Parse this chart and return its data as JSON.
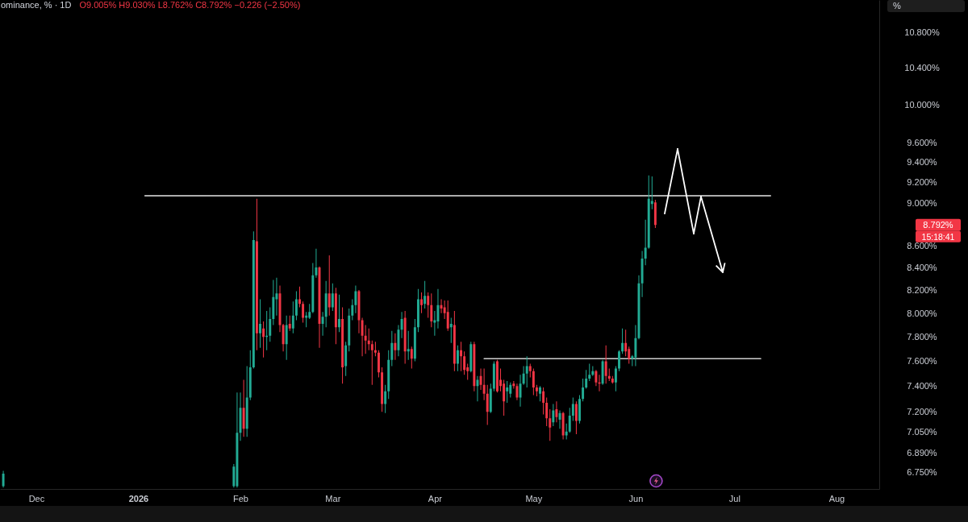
{
  "chart_data": {
    "type": "candlestick",
    "title": "ominance, % · 1D",
    "subtitle": "O9.005% H9.030% L8.762% C8.792% −0.226 (−2.50%)",
    "x": [
      "2025-11-21",
      "2026-01-30",
      "2026-01-31",
      "2026-02-01",
      "2026-02-02",
      "2026-02-03",
      "2026-02-04",
      "2026-02-05",
      "2026-02-06",
      "2026-02-07",
      "2026-02-08",
      "2026-02-09",
      "2026-02-10",
      "2026-02-11",
      "2026-02-12",
      "2026-02-13",
      "2026-02-14",
      "2026-02-15",
      "2026-02-16",
      "2026-02-17",
      "2026-02-18",
      "2026-02-19",
      "2026-02-20",
      "2026-02-21",
      "2026-02-22",
      "2026-02-23",
      "2026-02-24",
      "2026-02-25",
      "2026-02-26",
      "2026-02-27",
      "2026-02-28",
      "2026-03-01",
      "2026-03-02",
      "2026-03-03",
      "2026-03-04",
      "2026-03-05",
      "2026-03-06",
      "2026-03-07",
      "2026-03-08",
      "2026-03-09",
      "2026-03-10",
      "2026-03-11",
      "2026-03-12",
      "2026-03-13",
      "2026-03-14",
      "2026-03-15",
      "2026-03-16",
      "2026-03-17",
      "2026-03-18",
      "2026-03-19",
      "2026-03-20",
      "2026-03-21",
      "2026-03-22",
      "2026-03-23",
      "2026-03-24",
      "2026-03-25",
      "2026-03-26",
      "2026-03-27",
      "2026-03-28",
      "2026-03-29",
      "2026-03-30",
      "2026-03-31",
      "2026-04-01",
      "2026-04-02",
      "2026-04-03",
      "2026-04-04",
      "2026-04-05",
      "2026-04-06",
      "2026-04-07",
      "2026-04-08",
      "2026-04-09",
      "2026-04-10",
      "2026-04-11",
      "2026-04-12",
      "2026-04-13",
      "2026-04-14",
      "2026-04-15",
      "2026-04-16",
      "2026-04-17",
      "2026-04-18",
      "2026-04-19",
      "2026-04-20",
      "2026-04-21",
      "2026-04-22",
      "2026-04-23",
      "2026-04-24",
      "2026-04-25",
      "2026-04-26",
      "2026-04-27",
      "2026-04-28",
      "2026-04-29",
      "2026-04-30",
      "2026-05-01",
      "2026-05-02",
      "2026-05-03",
      "2026-05-04",
      "2026-05-05",
      "2026-05-06",
      "2026-05-07",
      "2026-05-08",
      "2026-05-09",
      "2026-05-10",
      "2026-05-11",
      "2026-05-12",
      "2026-05-13",
      "2026-05-14",
      "2026-05-15",
      "2026-05-16",
      "2026-05-17",
      "2026-05-18",
      "2026-05-19",
      "2026-05-20",
      "2026-05-21",
      "2026-05-22",
      "2026-05-23",
      "2026-05-24",
      "2026-05-25",
      "2026-05-26",
      "2026-05-27",
      "2026-05-28",
      "2026-05-29",
      "2026-05-30",
      "2026-05-31",
      "2026-06-01",
      "2026-06-02",
      "2026-06-03",
      "2026-06-04",
      "2026-06-05",
      "2026-06-06",
      "2026-06-07"
    ],
    "ohlc": [
      [
        6.65,
        6.76,
        6.64,
        6.74
      ],
      [
        6.65,
        6.81,
        6.64,
        6.79
      ],
      [
        6.65,
        7.35,
        6.64,
        7.04
      ],
      [
        7.04,
        7.35,
        6.98,
        7.23
      ],
      [
        7.23,
        7.45,
        7.01,
        7.07
      ],
      [
        7.07,
        7.56,
        7.01,
        7.31
      ],
      [
        7.31,
        7.69,
        7.29,
        7.55
      ],
      [
        7.55,
        8.73,
        7.54,
        8.65
      ],
      [
        8.64,
        9.04,
        7.69,
        7.83
      ],
      [
        7.83,
        8.12,
        7.71,
        7.91
      ],
      [
        7.87,
        7.93,
        7.63,
        7.8
      ],
      [
        7.8,
        8.02,
        7.69,
        7.81
      ],
      [
        7.81,
        8.05,
        7.76,
        7.95
      ],
      [
        7.95,
        8.29,
        7.9,
        8.14
      ],
      [
        8.12,
        8.31,
        7.98,
        8.17
      ],
      [
        8.17,
        8.24,
        7.84,
        7.9
      ],
      [
        7.9,
        7.91,
        7.68,
        7.74
      ],
      [
        7.74,
        7.98,
        7.61,
        7.9
      ],
      [
        7.91,
        7.98,
        7.85,
        7.87
      ],
      [
        7.87,
        8.1,
        7.83,
        7.98
      ],
      [
        7.98,
        8.19,
        7.94,
        8.12
      ],
      [
        8.12,
        8.23,
        8.05,
        8.08
      ],
      [
        8.08,
        8.1,
        7.92,
        7.96
      ],
      [
        7.96,
        8.01,
        7.88,
        7.98
      ],
      [
        7.96,
        8.08,
        7.95,
        8.01
      ],
      [
        8.01,
        8.44,
        8.0,
        8.33
      ],
      [
        8.33,
        8.57,
        8.31,
        8.4
      ],
      [
        8.4,
        8.41,
        7.71,
        7.91
      ],
      [
        7.91,
        8.01,
        7.81,
        7.97
      ],
      [
        7.97,
        8.28,
        7.88,
        8.17
      ],
      [
        8.17,
        8.51,
        7.98,
        8.05
      ],
      [
        8.05,
        8.26,
        8.02,
        8.17
      ],
      [
        8.17,
        8.22,
        7.74,
        7.88
      ],
      [
        7.88,
        8.16,
        7.84,
        7.95
      ],
      [
        7.95,
        8.05,
        7.42,
        7.55
      ],
      [
        7.56,
        7.76,
        7.48,
        7.73
      ],
      [
        7.73,
        8.04,
        7.68,
        7.98
      ],
      [
        7.98,
        8.12,
        7.94,
        8.07
      ],
      [
        8.07,
        8.24,
        8.0,
        8.19
      ],
      [
        8.19,
        8.2,
        7.83,
        7.94
      ],
      [
        7.94,
        7.96,
        7.64,
        7.81
      ],
      [
        7.81,
        7.9,
        7.66,
        7.77
      ],
      [
        7.77,
        7.87,
        7.69,
        7.74
      ],
      [
        7.74,
        7.77,
        7.41,
        7.69
      ],
      [
        7.69,
        7.76,
        7.64,
        7.67
      ],
      [
        7.67,
        7.69,
        7.47,
        7.51
      ],
      [
        7.51,
        7.55,
        7.2,
        7.26
      ],
      [
        7.26,
        7.41,
        7.19,
        7.36
      ],
      [
        7.36,
        7.69,
        7.3,
        7.61
      ],
      [
        7.61,
        7.85,
        7.56,
        7.75
      ],
      [
        7.75,
        7.83,
        7.61,
        7.69
      ],
      [
        7.69,
        7.9,
        7.64,
        7.86
      ],
      [
        7.86,
        8.01,
        7.79,
        7.95
      ],
      [
        7.96,
        8.02,
        7.58,
        7.68
      ],
      [
        7.68,
        7.85,
        7.61,
        7.7
      ],
      [
        7.7,
        7.72,
        7.54,
        7.62
      ],
      [
        7.62,
        7.95,
        7.6,
        7.88
      ],
      [
        7.88,
        8.21,
        7.84,
        8.12
      ],
      [
        8.12,
        8.18,
        8.0,
        8.07
      ],
      [
        8.08,
        8.28,
        8.04,
        8.15
      ],
      [
        8.15,
        8.18,
        7.96,
        8.07
      ],
      [
        8.07,
        8.17,
        7.88,
        7.93
      ],
      [
        7.92,
        8.02,
        7.81,
        7.94
      ],
      [
        7.93,
        8.21,
        7.87,
        8.07
      ],
      [
        8.07,
        8.12,
        8.0,
        8.04
      ],
      [
        8.05,
        8.11,
        7.95,
        8.0
      ],
      [
        8.01,
        8.11,
        7.85,
        7.87
      ],
      [
        7.88,
        7.96,
        7.75,
        7.91
      ],
      [
        7.9,
        8.02,
        7.52,
        7.58
      ],
      [
        7.58,
        7.73,
        7.52,
        7.69
      ],
      [
        7.69,
        7.76,
        7.52,
        7.64
      ],
      [
        7.64,
        7.68,
        7.49,
        7.53
      ],
      [
        7.55,
        7.58,
        7.45,
        7.52
      ],
      [
        7.52,
        7.76,
        7.51,
        7.74
      ],
      [
        7.74,
        7.76,
        7.36,
        7.4
      ],
      [
        7.4,
        7.48,
        7.28,
        7.45
      ],
      [
        7.48,
        7.54,
        7.37,
        7.41
      ],
      [
        7.41,
        7.54,
        7.29,
        7.34
      ],
      [
        7.34,
        7.41,
        7.1,
        7.2
      ],
      [
        7.2,
        7.42,
        7.19,
        7.38
      ],
      [
        7.38,
        7.6,
        7.36,
        7.58
      ],
      [
        7.6,
        7.61,
        7.35,
        7.36
      ],
      [
        7.45,
        7.54,
        7.36,
        7.4
      ],
      [
        7.42,
        7.45,
        7.17,
        7.28
      ],
      [
        7.36,
        7.44,
        7.27,
        7.39
      ],
      [
        7.34,
        7.43,
        7.31,
        7.41
      ],
      [
        7.42,
        7.44,
        7.38,
        7.4
      ],
      [
        7.4,
        7.42,
        7.29,
        7.31
      ],
      [
        7.31,
        7.49,
        7.24,
        7.42
      ],
      [
        7.42,
        7.56,
        7.41,
        7.5
      ],
      [
        7.5,
        7.64,
        7.39,
        7.56
      ],
      [
        7.56,
        7.58,
        7.47,
        7.52
      ],
      [
        7.52,
        7.54,
        7.33,
        7.39
      ],
      [
        7.39,
        7.41,
        7.32,
        7.36
      ],
      [
        7.34,
        7.4,
        7.28,
        7.39
      ],
      [
        7.36,
        7.39,
        7.18,
        7.27
      ],
      [
        7.27,
        7.31,
        7.09,
        7.15
      ],
      [
        7.15,
        7.22,
        6.98,
        7.08
      ],
      [
        7.12,
        7.26,
        7.09,
        7.21
      ],
      [
        7.22,
        7.28,
        7.12,
        7.16
      ],
      [
        7.14,
        7.21,
        7.07,
        7.19
      ],
      [
        7.19,
        7.2,
        6.99,
        7.02
      ],
      [
        7.02,
        7.11,
        6.99,
        7.05
      ],
      [
        7.05,
        7.23,
        7.04,
        7.17
      ],
      [
        7.17,
        7.31,
        7.13,
        7.26
      ],
      [
        7.26,
        7.28,
        7.03,
        7.13
      ],
      [
        7.13,
        7.33,
        7.11,
        7.3
      ],
      [
        7.3,
        7.46,
        7.28,
        7.39
      ],
      [
        7.39,
        7.53,
        7.38,
        7.46
      ],
      [
        7.46,
        7.58,
        7.44,
        7.49
      ],
      [
        7.49,
        7.56,
        7.48,
        7.52
      ],
      [
        7.52,
        7.53,
        7.4,
        7.43
      ],
      [
        7.43,
        7.49,
        7.36,
        7.42
      ],
      [
        7.42,
        7.61,
        7.41,
        7.6
      ],
      [
        7.6,
        7.73,
        7.42,
        7.48
      ],
      [
        7.48,
        7.54,
        7.44,
        7.46
      ],
      [
        7.46,
        7.48,
        7.42,
        7.43
      ],
      [
        7.43,
        7.56,
        7.36,
        7.54
      ],
      [
        7.54,
        7.69,
        7.52,
        7.68
      ],
      [
        7.68,
        7.87,
        7.66,
        7.75
      ],
      [
        7.75,
        7.86,
        7.64,
        7.68
      ],
      [
        7.7,
        7.72,
        7.58,
        7.62
      ],
      [
        7.62,
        7.65,
        7.56,
        7.64
      ],
      [
        7.63,
        7.9,
        7.56,
        7.79
      ],
      [
        7.79,
        8.33,
        7.78,
        8.26
      ],
      [
        8.26,
        8.55,
        8.14,
        8.48
      ],
      [
        8.48,
        8.84,
        8.42,
        8.58
      ],
      [
        8.58,
        9.27,
        8.57,
        9.04
      ],
      [
        8.99,
        9.26,
        8.94,
        9.02
      ],
      [
        9.005,
        9.03,
        8.762,
        8.792
      ]
    ],
    "colors": [
      "#22ab94",
      "#22ab94",
      "#22ab94",
      "#22ab94",
      "#f23645",
      "#22ab94",
      "#22ab94",
      "#22ab94",
      "#f23645",
      "#22ab94",
      "#f23645",
      "#22ab94",
      "#22ab94",
      "#22ab94",
      "#22ab94",
      "#f23645",
      "#f23645",
      "#22ab94",
      "#f23645",
      "#22ab94",
      "#22ab94",
      "#f23645",
      "#f23645",
      "#22ab94",
      "#22ab94",
      "#22ab94",
      "#22ab94",
      "#f23645",
      "#22ab94",
      "#22ab94",
      "#f23645",
      "#22ab94",
      "#f23645",
      "#22ab94",
      "#f23645",
      "#22ab94",
      "#22ab94",
      "#22ab94",
      "#22ab94",
      "#f23645",
      "#f23645",
      "#f23645",
      "#f23645",
      "#f23645",
      "#f23645",
      "#f23645",
      "#f23645",
      "#22ab94",
      "#22ab94",
      "#22ab94",
      "#f23645",
      "#22ab94",
      "#22ab94",
      "#f23645",
      "#22ab94",
      "#f23645",
      "#22ab94",
      "#22ab94",
      "#f23645",
      "#22ab94",
      "#f23645",
      "#f23645",
      "#22ab94",
      "#22ab94",
      "#f23645",
      "#f23645",
      "#f23645",
      "#22ab94",
      "#f23645",
      "#22ab94",
      "#f23645",
      "#f23645",
      "#f23645",
      "#22ab94",
      "#f23645",
      "#22ab94",
      "#f23645",
      "#f23645",
      "#f23645",
      "#22ab94",
      "#22ab94",
      "#f23645",
      "#f23645",
      "#f23645",
      "#22ab94",
      "#22ab94",
      "#f23645",
      "#f23645",
      "#22ab94",
      "#22ab94",
      "#22ab94",
      "#f23645",
      "#f23645",
      "#f23645",
      "#22ab94",
      "#f23645",
      "#f23645",
      "#f23645",
      "#22ab94",
      "#f23645",
      "#22ab94",
      "#f23645",
      "#22ab94",
      "#22ab94",
      "#22ab94",
      "#f23645",
      "#22ab94",
      "#22ab94",
      "#22ab94",
      "#22ab94",
      "#22ab94",
      "#f23645",
      "#f23645",
      "#22ab94",
      "#f23645",
      "#f23645",
      "#f23645",
      "#22ab94",
      "#22ab94",
      "#22ab94",
      "#f23645",
      "#f23645",
      "#22ab94",
      "#22ab94",
      "#22ab94",
      "#22ab94",
      "#22ab94",
      "#22ab94",
      "#22ab94",
      "#f23645"
    ],
    "series": [
      {
        "type": "line",
        "color": "#e6e6e6",
        "x": [
          "2026-01-03",
          "2026-07-12"
        ],
        "values": [
          9.07,
          9.07
        ]
      },
      {
        "type": "line",
        "color": "#cfcfcf",
        "x": [
          "2026-04-16",
          "2026-07-09"
        ],
        "values": [
          7.62,
          7.62
        ]
      }
    ],
    "xlim": [
      "2025-11-20",
      "2026-08-14"
    ],
    "xticks": [
      {
        "value": "2025-12-01",
        "label": "Dec"
      },
      {
        "value": "2026-01-01",
        "label": "2026"
      },
      {
        "value": "2026-02-01",
        "label": "Feb"
      },
      {
        "value": "2026-03-01",
        "label": "Mar"
      },
      {
        "value": "2026-04-01",
        "label": "Apr"
      },
      {
        "value": "2026-05-01",
        "label": "May"
      },
      {
        "value": "2026-06-01",
        "label": "Jun"
      },
      {
        "value": "2026-07-01",
        "label": "Jul"
      },
      {
        "value": "2026-08-01",
        "label": "Aug"
      }
    ],
    "ylim": [
      6.63,
      11.18
    ],
    "yticks": [
      {
        "value": 6.75,
        "label": "6.750%"
      },
      {
        "value": 6.89,
        "label": "6.890%"
      },
      {
        "value": 7.05,
        "label": "7.050%"
      },
      {
        "value": 7.2,
        "label": "7.200%"
      },
      {
        "value": 7.4,
        "label": "7.400%"
      },
      {
        "value": 7.6,
        "label": "7.600%"
      },
      {
        "value": 7.8,
        "label": "7.800%"
      },
      {
        "value": 8.0,
        "label": "8.000%"
      },
      {
        "value": 8.2,
        "label": "8.200%"
      },
      {
        "value": 8.4,
        "label": "8.400%"
      },
      {
        "value": 8.6,
        "label": "8.600%"
      },
      {
        "value": 9.0,
        "label": "9.000%"
      },
      {
        "value": 9.2,
        "label": "9.200%"
      },
      {
        "value": 9.4,
        "label": "9.400%"
      },
      {
        "value": 9.6,
        "label": "9.600%"
      },
      {
        "value": 10.0,
        "label": "10.000%"
      },
      {
        "value": 10.4,
        "label": "10.400%"
      },
      {
        "value": 10.8,
        "label": "10.800%"
      }
    ],
    "log": true,
    "annotations": [
      "8.792%",
      "15:18:41",
      "%"
    ]
  }
}
